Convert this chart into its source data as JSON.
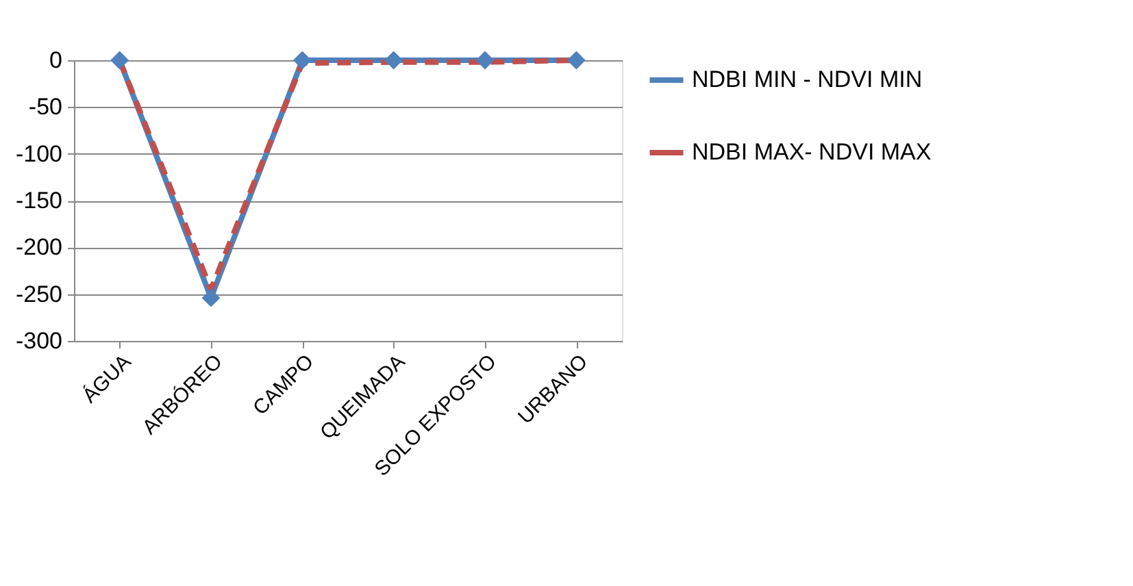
{
  "chart_data": {
    "type": "line",
    "categories": [
      "ÁGUA",
      "ARBÓREO",
      "CAMPO",
      "QUEIMADA",
      "SOLO EXPOSTO",
      "URBANO"
    ],
    "series": [
      {
        "name": "NDBI MIN - NDVI MIN",
        "color": "#4f81bd",
        "values": [
          0,
          -254,
          0,
          0,
          0,
          0
        ],
        "marker": "diamond",
        "line_style": "solid"
      },
      {
        "name": "NDBI MAX- NDVI MAX",
        "color": "#c0504d",
        "values": [
          0,
          -245,
          -3,
          -2,
          -2,
          0
        ],
        "marker": "none",
        "line_style": "dashed"
      }
    ],
    "ylim": [
      -300,
      0
    ],
    "yticks": [
      -300,
      -250,
      -200,
      -150,
      -100,
      -50,
      0
    ],
    "grid": "y",
    "legend": "right"
  }
}
